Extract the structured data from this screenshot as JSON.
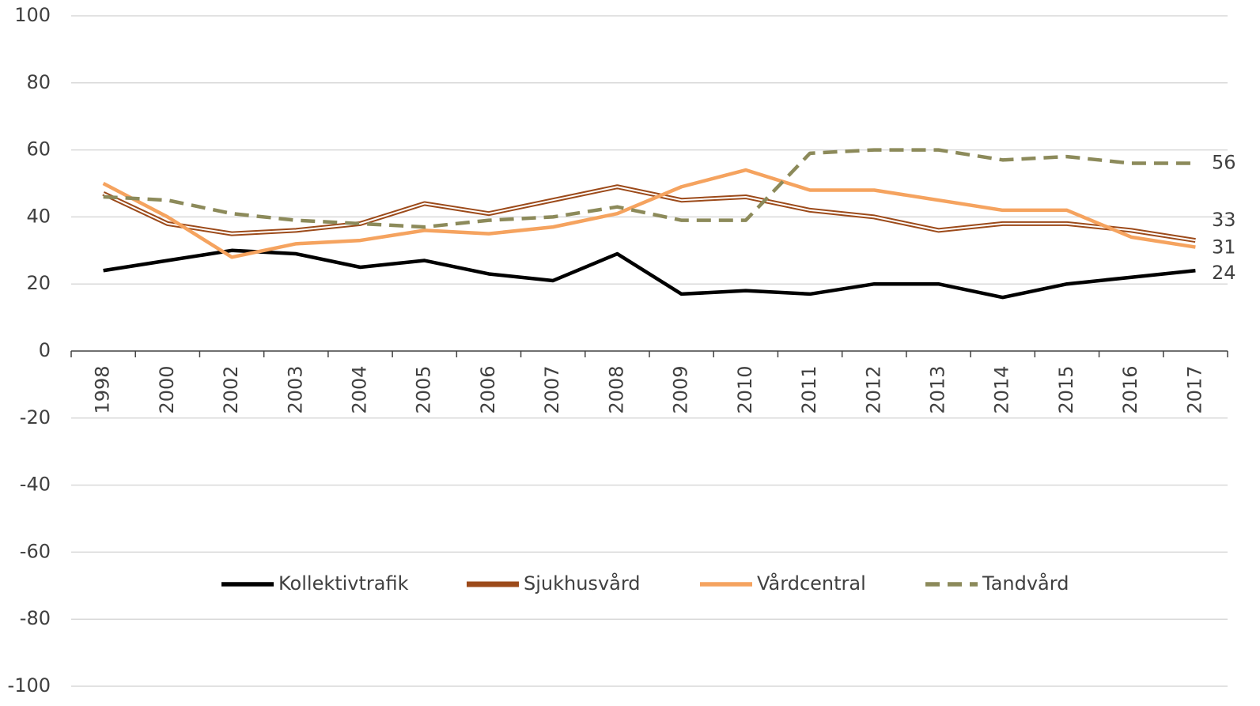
{
  "chart_data": {
    "type": "line",
    "categories": [
      "1998",
      "2000",
      "2002",
      "2003",
      "2004",
      "2005",
      "2006",
      "2007",
      "2008",
      "2009",
      "2010",
      "2011",
      "2012",
      "2013",
      "2014",
      "2015",
      "2016",
      "2017"
    ],
    "series": [
      {
        "name": "Kollektivtrafik",
        "color": "#000000",
        "style": "solid",
        "values": [
          24,
          27,
          30,
          29,
          25,
          27,
          23,
          21,
          29,
          17,
          18,
          17,
          20,
          20,
          16,
          20,
          22,
          24
        ]
      },
      {
        "name": "Sjukhusvård",
        "color": "#9c4a1a",
        "style": "double",
        "values": [
          47,
          38,
          35,
          36,
          38,
          44,
          41,
          45,
          49,
          45,
          46,
          42,
          40,
          36,
          38,
          38,
          36,
          33
        ]
      },
      {
        "name": "Vårdcentral",
        "color": "#f5a35f",
        "style": "solid",
        "values": [
          50,
          40,
          28,
          32,
          33,
          36,
          35,
          37,
          41,
          49,
          54,
          48,
          48,
          45,
          42,
          42,
          34,
          31
        ]
      },
      {
        "name": "Tandvård",
        "color": "#8c8a5a",
        "style": "dashed",
        "values": [
          46,
          45,
          41,
          39,
          38,
          37,
          39,
          40,
          43,
          39,
          39,
          59,
          60,
          60,
          57,
          58,
          56,
          56
        ]
      }
    ],
    "ylim": [
      -100,
      100
    ],
    "yticks": [
      -100,
      -80,
      -60,
      -40,
      -20,
      0,
      20,
      40,
      60,
      80,
      100
    ],
    "grid": true,
    "legend": "bottom"
  }
}
